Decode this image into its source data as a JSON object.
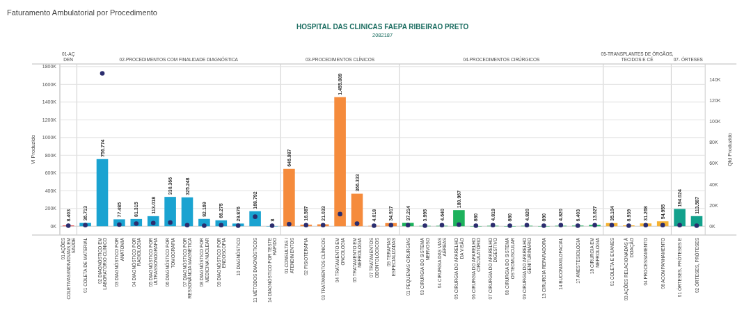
{
  "chart_data": {
    "type": "bar",
    "title": "Faturamento Ambulatorial por Procedimento",
    "subtitle": "HOSPITAL DAS CLINICAS FAEPA RIBEIRAO PRETO",
    "ylabel": "Vl Produzido",
    "y2label": "Qtd Produzido",
    "annotations": [
      "2082187",
      "01-AÇ DEN",
      "02-PROCEDIMENTOS COM FINALIDADE DIAGNÓSTICA",
      "03-PROCEDIMENTOS CLÍNICOS",
      "04-PROCEDIMENTOS CIRÚRGICOS",
      "05-TRANSPLANTES DE ÓRGÃOS, TECIDOS E CÉ",
      "07- ÓRTESES"
    ],
    "categories": [
      "01 AÇÕES COLETIVAS/INDIVIDUAIS EM SAÚDE",
      "01 COLETA DE MATERIAL",
      "02 DIAGNÓSTICO EM LABORATÓRIO CLÍNICO",
      "03 DIAGNÓSTICO POR ANATOMIA",
      "04 DIAGNÓSTICO POR RADIOLOGIA",
      "05 DIAGNÓSTICO POR ULTRASSONOGRAFIA",
      "06 DIAGNÓSTICO POR TOMOGRAFIA",
      "07 DIAGNÓSTICO POR RESSONÂNCIA MAGNÉTICA",
      "08 DIAGNÓSTICO POR MEDICINA NUCLEAR",
      "09 DIAGNÓSTICO POR ENDOSCOPIA",
      "10 DIAGNÓSTICO",
      "11 MÉTODOS DIAGNÓSTICOS",
      "14 DIAGNÓSTICO POR TESTE RÁPIDO",
      "01 CONSULTAS / ATENDIMENTOS",
      "02 FISIOTERAPIA",
      "03 TRATAMENTOS CLÍNICOS",
      "04 TRATAMENTO EM ONCOLOGIA",
      "05 TRATAMENTO EM NEFROLOGIA",
      "07 TRATAMENTOS ODONTOLÓGICOS",
      "09 TERAPIAS ESPECIALIZADAS",
      "01 PEQUENAS CIRURGIAS",
      "03 CIRURGIA DO SISTEMA NERVOSO",
      "04 CIRURGIA DAS VIAS AÉREAS",
      "05 CIRURGIA DO APARELHO DA VISÃO",
      "06 CIRURGIA DO APARELHO CIRCULATÓRIO",
      "07 CIRURGIA DO APARELHO DIGESTIVO",
      "08 CIRURGIA DO SISTEMA OSTEOMUSCULAR",
      "09 CIRURGIA DO APARELHO GENITURINÁRIO",
      "13 CIRURGIA REPARADORA",
      "14 BUCOMAXILOFACIAL",
      "17 ANESTESIOLOGIA",
      "18 CIRURGIA EM NEFROLOGIA",
      "01 COLETA E EXAMES",
      "03 AÇÕES RELACIONADAS À DOAÇÃO",
      "04 PROCESSAMENTO",
      "06 ACOMPANHAMENTO",
      "01 ÓRTESES, PRÓTESES E",
      "02 ÓRTESES, PRÓTESES"
    ],
    "series": [
      {
        "colors": [
          "#e15759",
          "#1aa3d1",
          "#1aa3d1",
          "#1aa3d1",
          "#1aa3d1",
          "#1aa3d1",
          "#1aa3d1",
          "#1aa3d1",
          "#1aa3d1",
          "#1aa3d1",
          "#1aa3d1",
          "#1aa3d1",
          "#1aa3d1",
          "#f58b3c",
          "#f58b3c",
          "#f58b3c",
          "#f58b3c",
          "#f58b3c",
          "#f58b3c",
          "#f58b3c",
          "#1db25c",
          "#1db25c",
          "#1db25c",
          "#1db25c",
          "#1db25c",
          "#1db25c",
          "#1db25c",
          "#1db25c",
          "#1db25c",
          "#1db25c",
          "#1db25c",
          "#1db25c",
          "#f5b335",
          "#f5b335",
          "#f5b335",
          "#f5b335",
          "#12a18c",
          "#12a18c"
        ],
        "values": [
          8403,
          36713,
          756774,
          77485,
          81315,
          113018,
          330366,
          325248,
          82169,
          66275,
          29876,
          168792,
          8,
          646987,
          16587,
          21033,
          1455889,
          366333,
          4018,
          34917,
          37214,
          3995,
          4640,
          180967,
          880,
          4819,
          880,
          4820,
          890,
          4820,
          6403,
          13627,
          35104,
          8939,
          31268,
          54955,
          194024,
          113587
        ],
        "value_labels": [
          "8.403",
          "36.713",
          "756.774",
          "77.485",
          "81.315",
          "113.018",
          "330.366",
          "325.248",
          "82.169",
          "66.275",
          "29.876",
          "168.792",
          "8",
          "646.987",
          "16.587",
          "21.033",
          "1.455.889",
          "366.333",
          "4.018",
          "34.917",
          "37.214",
          "3.995",
          "4.640",
          "180.967",
          "880",
          "4.819",
          "880",
          "4.820",
          "890",
          "4.820",
          "6.403",
          "13.627",
          "35.104",
          "8.939",
          "31.268",
          "54.955",
          "194.024",
          "113.587"
        ]
      },
      {
        "type": "scatter",
        "axis": "y2",
        "color": "#2b2d6e",
        "values": [
          500,
          1000,
          146000,
          1500,
          2500,
          3000,
          3500,
          1000,
          500,
          1000,
          500,
          9000,
          500,
          2000,
          1000,
          1000,
          11500,
          2400,
          500,
          1000,
          1000,
          500,
          1000,
          1500,
          500,
          1000,
          500,
          1000,
          500,
          1000,
          500,
          1000,
          1000,
          500,
          1000,
          1000,
          1000,
          500
        ]
      }
    ],
    "ylim": [
      -100000,
      1830000
    ],
    "yticks": [
      {
        "value": 0,
        "label": "0K"
      },
      {
        "value": 200000,
        "label": "200K"
      },
      {
        "value": 400000,
        "label": "400K"
      },
      {
        "value": 600000,
        "label": "600K"
      },
      {
        "value": 800000,
        "label": "800K"
      },
      {
        "value": 1000000,
        "label": "1000K"
      },
      {
        "value": 1200000,
        "label": "1200K"
      },
      {
        "value": 1400000,
        "label": "1400K"
      },
      {
        "value": 1600000,
        "label": "1600K"
      },
      {
        "value": 1800000,
        "label": "1800K"
      }
    ],
    "y2lim": [
      -8500,
      155000
    ],
    "y2ticks": [
      {
        "value": 0,
        "label": "0K"
      },
      {
        "value": 20000,
        "label": "20K"
      },
      {
        "value": 40000,
        "label": "40K"
      },
      {
        "value": 60000,
        "label": "60K"
      },
      {
        "value": 80000,
        "label": "80K"
      },
      {
        "value": 100000,
        "label": "100K"
      },
      {
        "value": 120000,
        "label": "120K"
      },
      {
        "value": 140000,
        "label": "140K"
      }
    ],
    "grid": "y",
    "marker": "circle"
  }
}
